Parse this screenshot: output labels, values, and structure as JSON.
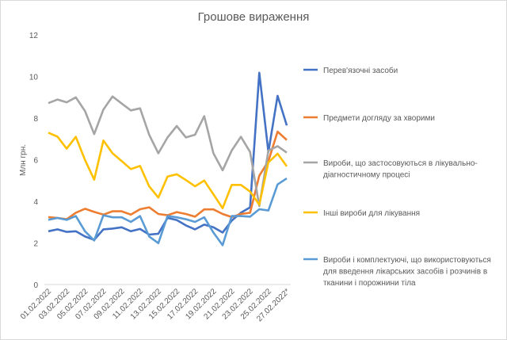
{
  "chart_data": {
    "type": "line",
    "title": "Грошове вираження",
    "xlabel": "",
    "ylabel": "Млн грн.",
    "ylim": [
      0,
      12
    ],
    "yticks": [
      0,
      2,
      4,
      6,
      8,
      10,
      12
    ],
    "grid": false,
    "legend_position": "right",
    "x": [
      "01.02.2022",
      "02.02.2022",
      "03.02.2022",
      "04.02.2022",
      "05.02.2022",
      "06.02.2022",
      "07.02.2022",
      "08.02.2022",
      "09.02.2022",
      "10.02.2022",
      "11.02.2022",
      "12.02.2022",
      "13.02.2022",
      "14.02.2022",
      "15.02.2022",
      "16.02.2022",
      "17.02.2022",
      "18.02.2022",
      "19.02.2022",
      "20.02.2022",
      "21.02.2022",
      "22.02.2022",
      "23.02.2022",
      "24.02.2022",
      "25.02.2022",
      "26.02.2022",
      "27.02.2022*"
    ],
    "xtick_labels": [
      "01.02.2022",
      "03.02.2022",
      "05.02.2022",
      "07.02.2022",
      "09.02.2022",
      "11.02.2022",
      "13.02.2022",
      "15.02.2022",
      "17.02.2022",
      "19.02.2022",
      "21.02.2022",
      "23.02.2022",
      "25.02.2022",
      "27.02.2022*"
    ],
    "series": [
      {
        "name": "Перев'язочні засоби",
        "color": "#4472C4",
        "values": [
          2.56,
          2.65,
          2.53,
          2.56,
          2.31,
          2.15,
          2.65,
          2.69,
          2.75,
          2.56,
          2.67,
          2.4,
          2.44,
          3.2,
          3.1,
          2.84,
          2.65,
          2.88,
          2.75,
          2.5,
          3.07,
          3.45,
          3.71,
          10.18,
          6.37,
          9.07,
          7.65
        ]
      },
      {
        "name": "Предмети догляду за хворими",
        "color": "#ED7D31",
        "values": [
          3.24,
          3.2,
          3.14,
          3.45,
          3.64,
          3.49,
          3.36,
          3.52,
          3.52,
          3.36,
          3.62,
          3.71,
          3.39,
          3.33,
          3.48,
          3.39,
          3.26,
          3.61,
          3.61,
          3.39,
          3.24,
          3.39,
          3.45,
          5.23,
          5.93,
          7.35,
          6.95
        ]
      },
      {
        "name": "Вироби, що застосовуються в лікувально-діагностичному процесі",
        "color": "#A5A5A5",
        "values": [
          8.72,
          8.89,
          8.76,
          9.0,
          8.34,
          7.23,
          8.41,
          9.04,
          8.7,
          8.37,
          8.47,
          7.2,
          6.31,
          7.07,
          7.62,
          7.07,
          7.2,
          8.09,
          6.31,
          5.49,
          6.44,
          7.1,
          6.37,
          3.77,
          6.44,
          6.65,
          6.34
        ]
      },
      {
        "name": "Інші вироби для лікування",
        "color": "#FFC000",
        "values": [
          7.3,
          7.11,
          6.53,
          7.1,
          5.99,
          5.04,
          6.92,
          6.31,
          5.93,
          5.55,
          5.7,
          4.72,
          4.18,
          5.19,
          5.3,
          5.02,
          4.72,
          5.0,
          4.34,
          3.67,
          4.79,
          4.79,
          4.47,
          3.84,
          5.87,
          6.29,
          5.68
        ]
      },
      {
        "name": "Вироби і комплектуючі, що використовуються для введення лікарських засобів і розчинів в тканини і порожнини тіла",
        "color": "#5B9BD5",
        "values": [
          3.11,
          3.2,
          3.11,
          3.29,
          2.56,
          2.12,
          3.33,
          3.23,
          3.23,
          3.01,
          3.29,
          2.31,
          1.99,
          3.29,
          3.23,
          3.14,
          3.01,
          3.23,
          2.5,
          1.89,
          3.29,
          3.29,
          3.26,
          3.62,
          3.56,
          4.81,
          5.1
        ]
      }
    ],
    "legend_lines": [
      [
        "Перев'язочні засоби"
      ],
      [
        "Предмети догляду за хворими"
      ],
      [
        "Вироби, що застосовуються в лікувально-",
        "діагностичному процесі"
      ],
      [
        "Інші вироби для лікування"
      ],
      [
        "Вироби і комплектуючі, що використовуються",
        "для введення лікарських засобів і розчинів в",
        "тканини і порожнини тіла"
      ]
    ]
  }
}
